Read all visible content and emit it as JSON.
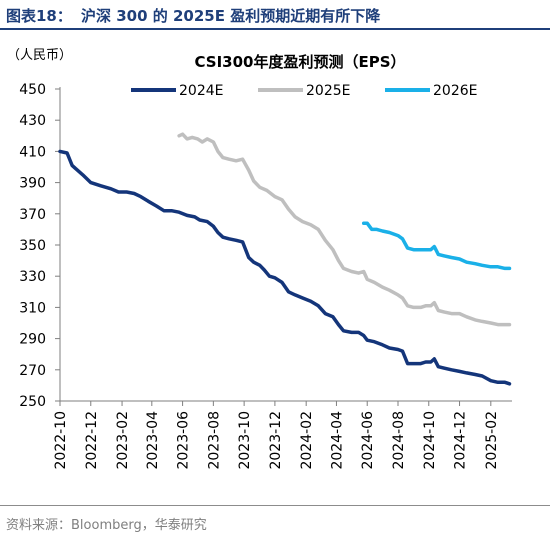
{
  "figure": {
    "number": "图表18：",
    "title": "沪深 300 的 2025E 盈利预期近期有所下降",
    "source": "资料来源：Bloomberg，华泰研究"
  },
  "chart_data": {
    "type": "line",
    "title": "CSI300年度盈利预测（EPS）",
    "unit_label": "（人民币）",
    "xlabel": "",
    "ylabel": "",
    "ylim": [
      250,
      450
    ],
    "yticks": [
      250,
      270,
      290,
      310,
      330,
      350,
      370,
      390,
      410,
      430,
      450
    ],
    "x_range": [
      "2022-10-01",
      "2025-03-15"
    ],
    "xticks": [
      "2022-10",
      "2022-12",
      "2023-02",
      "2023-04",
      "2023-06",
      "2023-08",
      "2023-10",
      "2023-12",
      "2024-02",
      "2024-04",
      "2024-06",
      "2024-08",
      "2024-10",
      "2024-12",
      "2025-02"
    ],
    "legend_position": "top",
    "grid": false,
    "series": [
      {
        "name": "2024E",
        "color": "#14357a",
        "points": [
          [
            "2022-10-01",
            410
          ],
          [
            "2022-10-15",
            409
          ],
          [
            "2022-10-25",
            401
          ],
          [
            "2022-11-01",
            399
          ],
          [
            "2022-11-15",
            395
          ],
          [
            "2022-12-01",
            390
          ],
          [
            "2022-12-20",
            388
          ],
          [
            "2023-01-10",
            386
          ],
          [
            "2023-01-25",
            384
          ],
          [
            "2023-02-10",
            384
          ],
          [
            "2023-02-25",
            383
          ],
          [
            "2023-03-10",
            381
          ],
          [
            "2023-03-25",
            378
          ],
          [
            "2023-04-10",
            375
          ],
          [
            "2023-04-25",
            372
          ],
          [
            "2023-05-10",
            372
          ],
          [
            "2023-05-25",
            371
          ],
          [
            "2023-06-10",
            369
          ],
          [
            "2023-06-25",
            368
          ],
          [
            "2023-07-05",
            366
          ],
          [
            "2023-07-20",
            365
          ],
          [
            "2023-08-01",
            362
          ],
          [
            "2023-08-10",
            358
          ],
          [
            "2023-08-20",
            355
          ],
          [
            "2023-09-01",
            354
          ],
          [
            "2023-09-15",
            353
          ],
          [
            "2023-09-28",
            352
          ],
          [
            "2023-10-10",
            342
          ],
          [
            "2023-10-20",
            339
          ],
          [
            "2023-11-01",
            337
          ],
          [
            "2023-11-10",
            334
          ],
          [
            "2023-11-20",
            330
          ],
          [
            "2023-12-01",
            329
          ],
          [
            "2023-12-15",
            326
          ],
          [
            "2023-12-28",
            320
          ],
          [
            "2024-01-10",
            318
          ],
          [
            "2024-01-25",
            316
          ],
          [
            "2024-02-10",
            314
          ],
          [
            "2024-02-25",
            311
          ],
          [
            "2024-03-10",
            306
          ],
          [
            "2024-03-25",
            304
          ],
          [
            "2024-04-05",
            299
          ],
          [
            "2024-04-15",
            295
          ],
          [
            "2024-05-01",
            294
          ],
          [
            "2024-05-15",
            294
          ],
          [
            "2024-05-25",
            292
          ],
          [
            "2024-06-01",
            289
          ],
          [
            "2024-06-15",
            288
          ],
          [
            "2024-07-01",
            286
          ],
          [
            "2024-07-15",
            284
          ],
          [
            "2024-08-01",
            283
          ],
          [
            "2024-08-10",
            282
          ],
          [
            "2024-08-20",
            274
          ],
          [
            "2024-09-01",
            274
          ],
          [
            "2024-09-15",
            274
          ],
          [
            "2024-09-25",
            275
          ],
          [
            "2024-10-05",
            275
          ],
          [
            "2024-10-12",
            277
          ],
          [
            "2024-10-20",
            272
          ],
          [
            "2024-11-01",
            271
          ],
          [
            "2024-11-15",
            270
          ],
          [
            "2024-12-01",
            269
          ],
          [
            "2024-12-15",
            268
          ],
          [
            "2025-01-01",
            267
          ],
          [
            "2025-01-15",
            266
          ],
          [
            "2025-02-01",
            263
          ],
          [
            "2025-02-15",
            262
          ],
          [
            "2025-03-01",
            262
          ],
          [
            "2025-03-10",
            261
          ]
        ]
      },
      {
        "name": "2025E",
        "color": "#bfbfbf",
        "points": [
          [
            "2023-05-25",
            420
          ],
          [
            "2023-06-01",
            421
          ],
          [
            "2023-06-10",
            418
          ],
          [
            "2023-06-20",
            419
          ],
          [
            "2023-07-01",
            418
          ],
          [
            "2023-07-10",
            416
          ],
          [
            "2023-07-20",
            418
          ],
          [
            "2023-08-01",
            416
          ],
          [
            "2023-08-10",
            410
          ],
          [
            "2023-08-20",
            406
          ],
          [
            "2023-09-01",
            405
          ],
          [
            "2023-09-15",
            404
          ],
          [
            "2023-09-28",
            405
          ],
          [
            "2023-10-10",
            398
          ],
          [
            "2023-10-20",
            391
          ],
          [
            "2023-11-01",
            387
          ],
          [
            "2023-11-15",
            385
          ],
          [
            "2023-12-01",
            381
          ],
          [
            "2023-12-15",
            379
          ],
          [
            "2023-12-28",
            373
          ],
          [
            "2024-01-10",
            368
          ],
          [
            "2024-01-25",
            365
          ],
          [
            "2024-02-10",
            363
          ],
          [
            "2024-02-25",
            360
          ],
          [
            "2024-03-10",
            353
          ],
          [
            "2024-03-25",
            347
          ],
          [
            "2024-04-05",
            340
          ],
          [
            "2024-04-15",
            335
          ],
          [
            "2024-05-01",
            333
          ],
          [
            "2024-05-15",
            332
          ],
          [
            "2024-05-25",
            333
          ],
          [
            "2024-06-01",
            328
          ],
          [
            "2024-06-15",
            326
          ],
          [
            "2024-07-01",
            323
          ],
          [
            "2024-07-15",
            321
          ],
          [
            "2024-08-01",
            318
          ],
          [
            "2024-08-10",
            316
          ],
          [
            "2024-08-20",
            311
          ],
          [
            "2024-09-01",
            310
          ],
          [
            "2024-09-15",
            310
          ],
          [
            "2024-09-25",
            311
          ],
          [
            "2024-10-05",
            311
          ],
          [
            "2024-10-12",
            313
          ],
          [
            "2024-10-20",
            308
          ],
          [
            "2024-11-01",
            307
          ],
          [
            "2024-11-15",
            306
          ],
          [
            "2024-12-01",
            306
          ],
          [
            "2024-12-15",
            304
          ],
          [
            "2025-01-01",
            302
          ],
          [
            "2025-01-15",
            301
          ],
          [
            "2025-02-01",
            300
          ],
          [
            "2025-02-15",
            299
          ],
          [
            "2025-03-01",
            299
          ],
          [
            "2025-03-10",
            299
          ]
        ]
      },
      {
        "name": "2026E",
        "color": "#1ab0e8",
        "points": [
          [
            "2024-05-25",
            364
          ],
          [
            "2024-06-01",
            364
          ],
          [
            "2024-06-10",
            360
          ],
          [
            "2024-06-20",
            360
          ],
          [
            "2024-07-01",
            359
          ],
          [
            "2024-07-15",
            358
          ],
          [
            "2024-08-01",
            356
          ],
          [
            "2024-08-10",
            354
          ],
          [
            "2024-08-20",
            348
          ],
          [
            "2024-09-01",
            347
          ],
          [
            "2024-09-15",
            347
          ],
          [
            "2024-09-25",
            347
          ],
          [
            "2024-10-05",
            347
          ],
          [
            "2024-10-12",
            349
          ],
          [
            "2024-10-20",
            344
          ],
          [
            "2024-11-01",
            343
          ],
          [
            "2024-11-15",
            342
          ],
          [
            "2024-12-01",
            341
          ],
          [
            "2024-12-15",
            339
          ],
          [
            "2025-01-01",
            338
          ],
          [
            "2025-01-15",
            337
          ],
          [
            "2025-02-01",
            336
          ],
          [
            "2025-02-15",
            336
          ],
          [
            "2025-03-01",
            335
          ],
          [
            "2025-03-10",
            335
          ]
        ]
      }
    ]
  }
}
